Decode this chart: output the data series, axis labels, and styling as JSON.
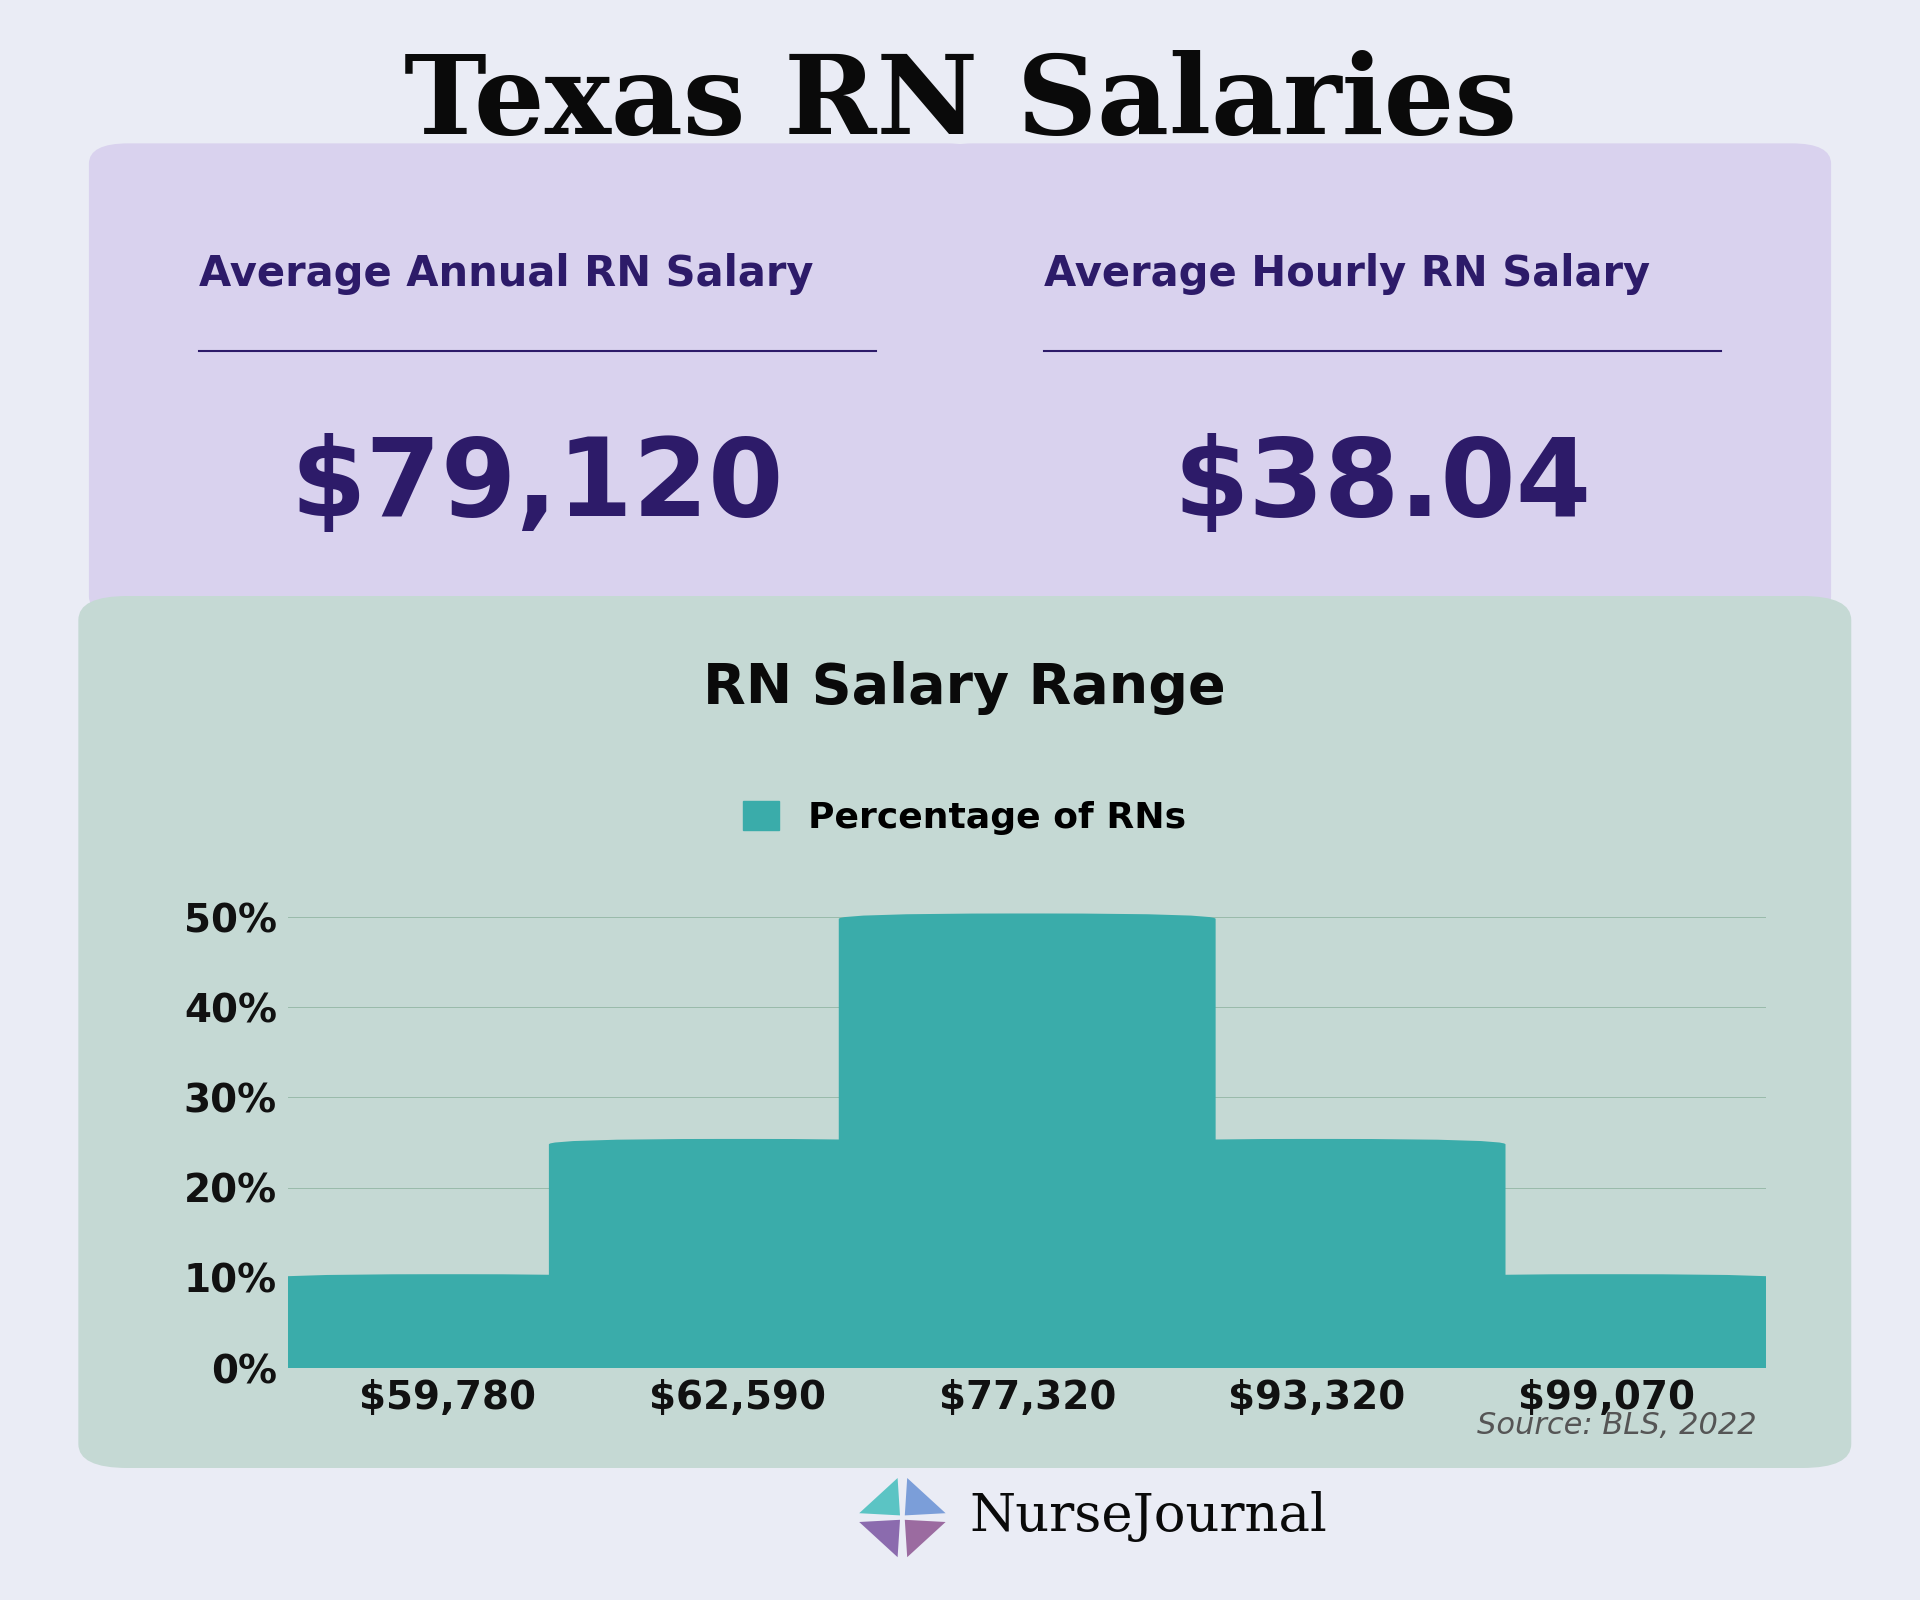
{
  "title": "Texas RN Salaries",
  "bg_color": "#EAEcF5",
  "title_color": "#0a0a0a",
  "title_fontsize": 80,
  "card_bg_color": "#D9D2EE",
  "card_text_color": "#2D1B69",
  "card1_label": "Average Annual RN Salary",
  "card1_value": "$79,120",
  "card2_label": "Average Hourly RN Salary",
  "card2_value": "$38.04",
  "card_label_fontsize": 30,
  "card_value_fontsize": 78,
  "chart_bg_color": "#C5D9D4",
  "chart_title": "RN Salary Range",
  "chart_title_color": "#0a0a0a",
  "chart_title_fontsize": 40,
  "legend_label": "Percentage of RNs",
  "legend_color": "#3AACAA",
  "legend_fontsize": 26,
  "bar_categories": [
    "$59,780",
    "$62,590",
    "$77,320",
    "$93,320",
    "$99,070"
  ],
  "bar_values": [
    10,
    25,
    50,
    25,
    10
  ],
  "bar_color": "#3AACAA",
  "ytick_labels": [
    "0%",
    "10%",
    "20%",
    "30%",
    "40%",
    "50%"
  ],
  "ytick_values": [
    0,
    10,
    20,
    30,
    40,
    50
  ],
  "axis_label_fontsize": 28,
  "xtick_fontsize": 28,
  "source_text": "Source: BLS, 2022",
  "source_fontsize": 22,
  "source_color": "#555555",
  "logo_text": "NurseJournal",
  "logo_fontsize": 38,
  "logo_color": "#0a0a0a"
}
